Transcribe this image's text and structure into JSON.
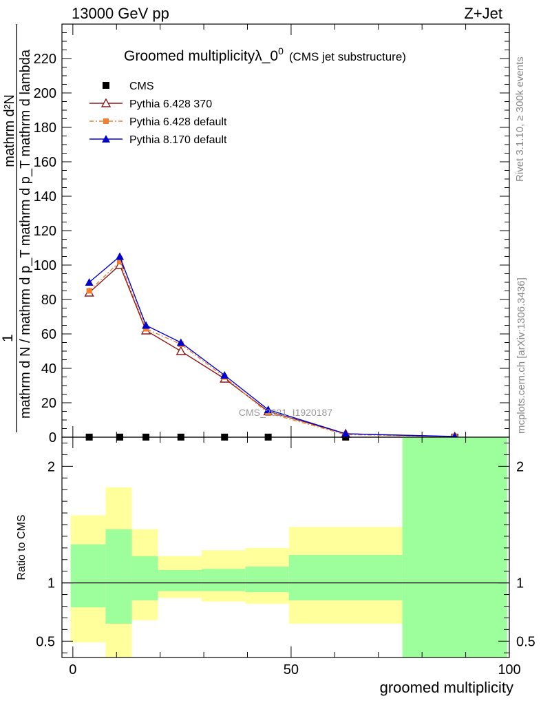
{
  "header": {
    "left": "13000 GeV pp",
    "right": "Z+Jet"
  },
  "side_labels": {
    "rivet": "Rivet 3.1.10, ≥ 300k events",
    "mcplots": "mcplots.cern.ch [arXiv:1306.3436]"
  },
  "watermark": "CMS_2021_I1920187",
  "chart_data": [
    {
      "type": "line",
      "title_main": "Groomed multiplicityλ_0",
      "title_sup": "0",
      "title_note": "(CMS jet substructure)",
      "ylabel_numerator": "mathrm d²N",
      "ylabel_denominator": "mathrm d N / mathrm d p_T mathrm d p_T mathrm d lambda",
      "ylabel_prefix": "1",
      "ylim": [
        0,
        240
      ],
      "yticks": [
        0,
        20,
        40,
        60,
        80,
        100,
        120,
        140,
        160,
        180,
        200,
        220
      ],
      "xlim": [
        -2.5,
        100
      ],
      "grid": false,
      "legend_position": "top-left",
      "series": [
        {
          "name": "CMS",
          "color": "#000000",
          "marker": "square",
          "x": [
            3.75,
            10.75,
            16.75,
            24.75,
            34.75,
            44.75,
            62.5,
            87.5
          ],
          "y": [
            0.05,
            0.05,
            0.05,
            0.05,
            0.05,
            0.05,
            0.05,
            0.05
          ]
        },
        {
          "name": "Pythia 6.428 370",
          "color": "#8b1a1a",
          "marker": "open-triangle",
          "x": [
            3.75,
            10.75,
            16.75,
            24.75,
            34.75,
            44.75,
            62.5,
            87.5
          ],
          "y": [
            84,
            100,
            62,
            50,
            34,
            15,
            2,
            0.3
          ]
        },
        {
          "name": "Pythia 6.428 default",
          "color": "#f07f30",
          "marker": "filled-square",
          "dashed": true,
          "x": [
            3.75,
            10.75,
            16.75,
            24.75,
            34.75,
            44.75,
            62.5,
            87.5
          ],
          "y": [
            85,
            102,
            63,
            54,
            35,
            14,
            1.5,
            0.3
          ]
        },
        {
          "name": "Pythia 8.170 default",
          "color": "#0000cc",
          "marker": "filled-triangle",
          "x": [
            3.75,
            10.75,
            16.75,
            24.75,
            34.75,
            44.75,
            62.5,
            87.5
          ],
          "y": [
            90,
            105,
            65,
            55,
            36,
            16,
            2,
            0.4
          ]
        }
      ]
    },
    {
      "type": "area",
      "ylabel": "Ratio to CMS",
      "xlabel": "groomed multiplicity",
      "xlim": [
        -2.5,
        100
      ],
      "xticks": [
        0,
        50,
        100
      ],
      "ylim": [
        0.36,
        2.25
      ],
      "yticks": [
        0.5,
        1,
        2
      ],
      "bands": [
        {
          "x0": -0.5,
          "x1": 7.5,
          "inner": [
            0.79,
            1.33
          ],
          "outer": [
            0.49,
            1.58
          ]
        },
        {
          "x0": 7.5,
          "x1": 13.5,
          "inner": [
            0.65,
            1.46
          ],
          "outer": [
            0.36,
            1.82
          ]
        },
        {
          "x0": 13.5,
          "x1": 19.5,
          "inner": [
            0.85,
            1.23
          ],
          "outer": [
            0.68,
            1.46
          ]
        },
        {
          "x0": 19.5,
          "x1": 29.5,
          "inner": [
            0.93,
            1.11
          ],
          "outer": [
            0.87,
            1.23
          ]
        },
        {
          "x0": 29.5,
          "x1": 39.5,
          "inner": [
            0.93,
            1.12
          ],
          "outer": [
            0.84,
            1.28
          ]
        },
        {
          "x0": 39.5,
          "x1": 49.5,
          "inner": [
            0.92,
            1.14
          ],
          "outer": [
            0.82,
            1.3
          ]
        },
        {
          "x0": 49.5,
          "x1": 75.5,
          "inner": [
            0.85,
            1.24
          ],
          "outer": [
            0.65,
            1.48
          ]
        },
        {
          "x0": 75.5,
          "x1": 99.5,
          "inner": [
            0.36,
            2.25
          ],
          "outer": [
            0.36,
            2.25
          ]
        }
      ]
    }
  ],
  "colors": {
    "band_inner": "#9cff9c",
    "band_outer": "#ffff9c"
  }
}
